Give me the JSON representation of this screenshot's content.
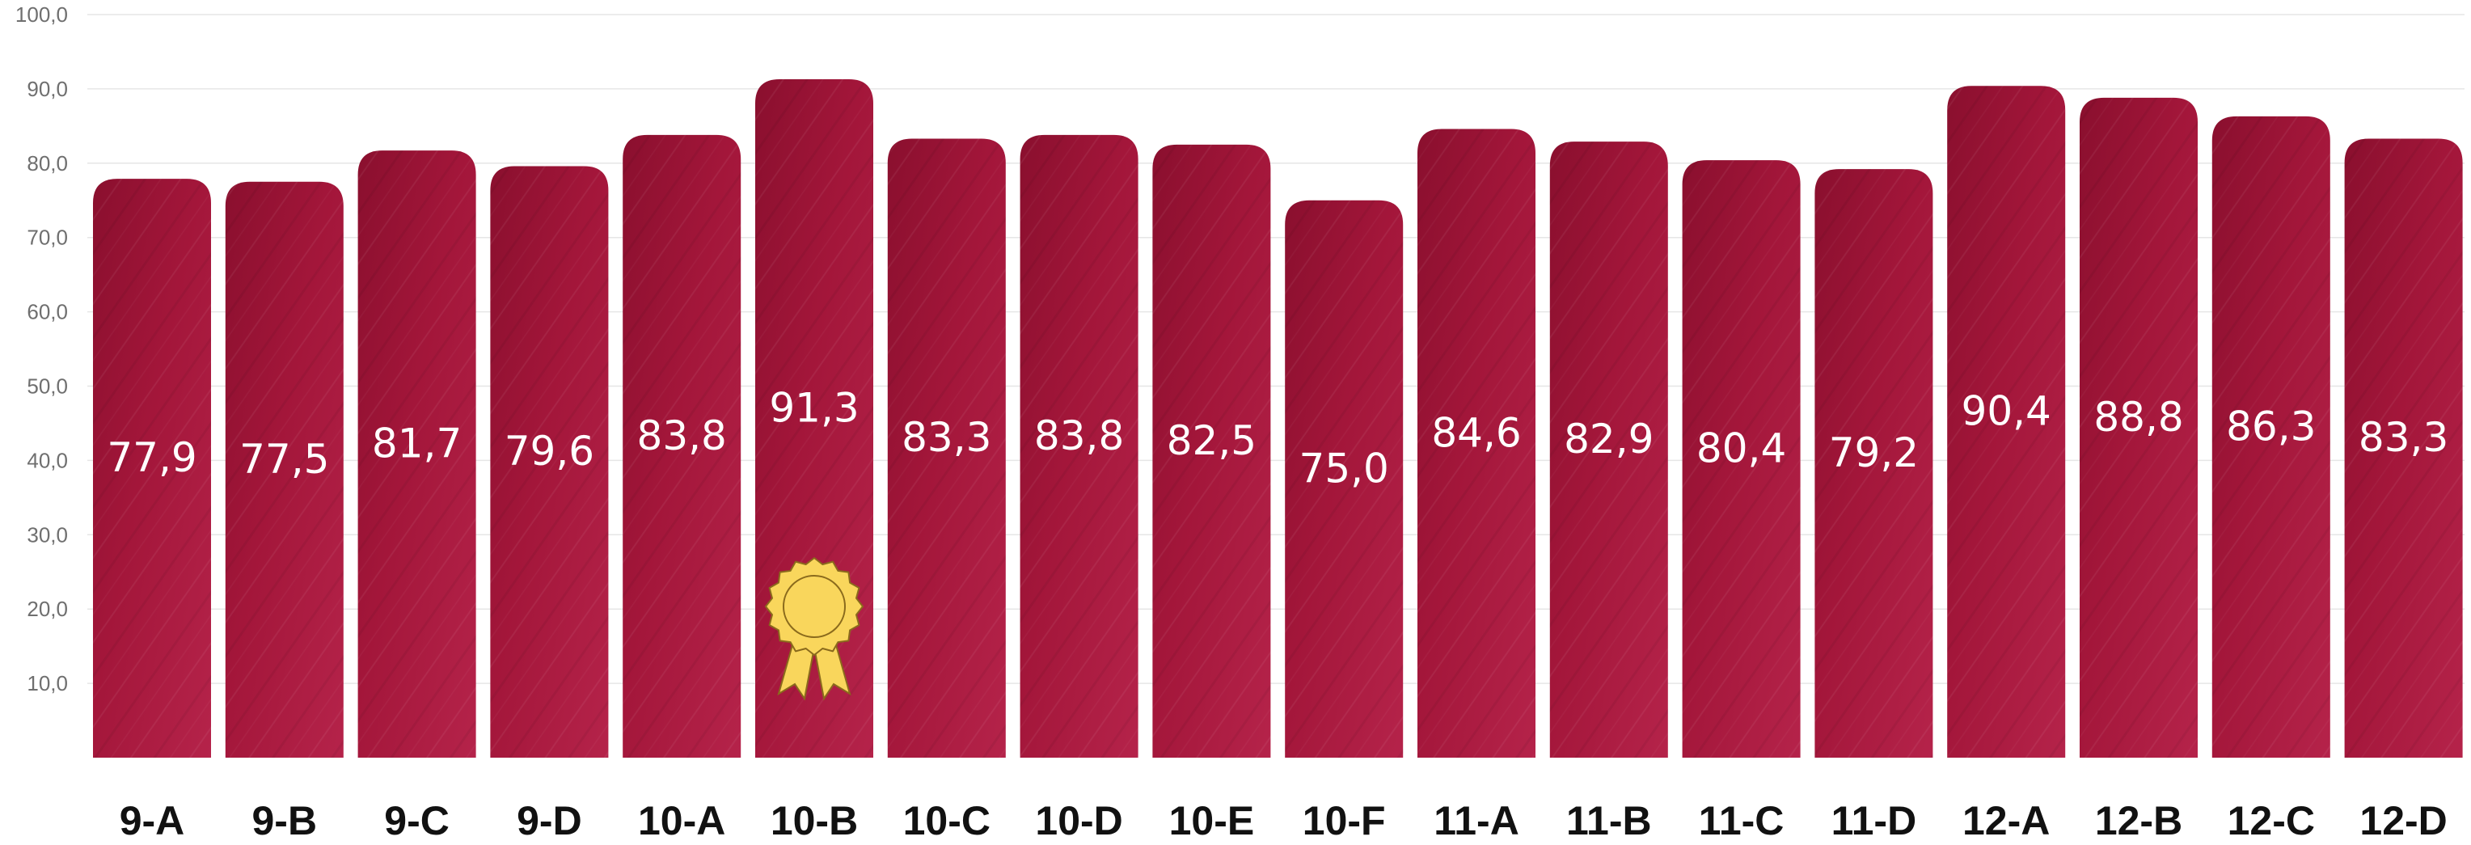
{
  "chart_data": {
    "type": "bar",
    "categories": [
      "9-A",
      "9-B",
      "9-C",
      "9-D",
      "10-A",
      "10-B",
      "10-C",
      "10-D",
      "10-E",
      "10-F",
      "11-A",
      "11-B",
      "11-C",
      "11-D",
      "12-A",
      "12-B",
      "12-C",
      "12-D"
    ],
    "values": [
      77.9,
      77.5,
      81.7,
      79.6,
      83.8,
      91.3,
      83.3,
      83.8,
      82.5,
      75.0,
      84.6,
      82.9,
      80.4,
      79.2,
      90.4,
      88.8,
      86.3,
      83.3
    ],
    "value_labels": [
      "77,9",
      "77,5",
      "81,7",
      "79,6",
      "83,8",
      "91,3",
      "83,3",
      "83,8",
      "82,5",
      "75,0",
      "84,6",
      "82,9",
      "80,4",
      "79,2",
      "90,4",
      "88,8",
      "86,3",
      "83,3"
    ],
    "y_ticks": [
      10,
      20,
      30,
      40,
      50,
      60,
      70,
      80,
      90,
      100
    ],
    "y_tick_labels": [
      "10,0",
      "20,0",
      "30,0",
      "40,0",
      "50,0",
      "60,0",
      "70,0",
      "80,0",
      "90,0",
      "100,0"
    ],
    "ylim": [
      0,
      100
    ],
    "grid": true,
    "title": "",
    "xlabel": "",
    "ylabel": "",
    "highlight_category": "10-B",
    "highlight_icon": "award-ribbon-icon",
    "colors": {
      "bar": "#a3163a",
      "bar_dark": "#8a0f2e",
      "bar_light": "#c0284c",
      "value_text": "#ffffff",
      "category_text": "#111111",
      "tick_text": "#6f6f6f",
      "grid": "#e6e6e6",
      "medal_gold": "#f9d65c",
      "medal_outline": "#8a6a1c"
    }
  }
}
